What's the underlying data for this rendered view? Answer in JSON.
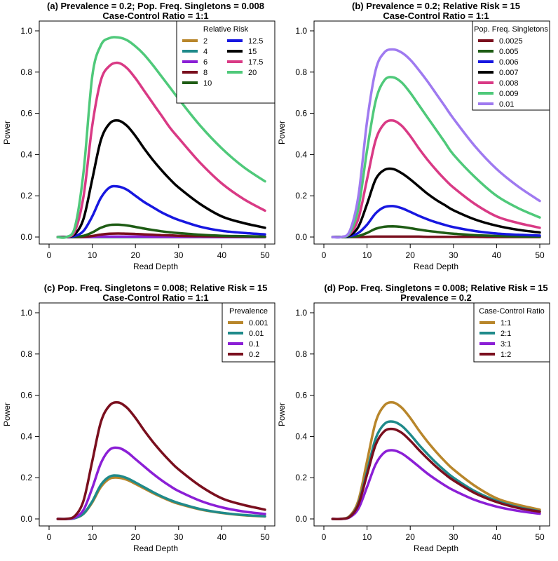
{
  "chart_data": [
    {
      "type": "line",
      "title": "(a) Prevalence = 0.2; Pop. Freq. Singletons = 0.008",
      "subtitle": "Case-Control Ratio = 1:1",
      "xlabel": "Read Depth",
      "ylabel": "Power",
      "xlim": [
        0,
        50
      ],
      "ylim": [
        0,
        1
      ],
      "xticks": [
        0,
        10,
        20,
        30,
        40,
        50
      ],
      "yticks": [
        0.0,
        0.2,
        0.4,
        0.6,
        0.8,
        1.0
      ],
      "legend_title": "Relative Risk",
      "legend_placement": "top-right",
      "legend_columns": 2,
      "x": [
        2,
        4,
        6,
        8,
        10,
        12,
        14,
        16,
        18,
        20,
        22,
        24,
        26,
        28,
        30,
        35,
        40,
        45,
        50
      ],
      "series": [
        {
          "name": "2",
          "color": "#B8862B",
          "values": [
            0,
            0,
            0,
            0,
            0,
            0,
            0,
            0,
            0,
            0,
            0,
            0,
            0,
            0,
            0,
            0,
            0,
            0,
            0
          ]
        },
        {
          "name": "4",
          "color": "#1F8A8A",
          "values": [
            0,
            0,
            0,
            0,
            0,
            0,
            0,
            0,
            0,
            0,
            0,
            0,
            0,
            0,
            0,
            0,
            0,
            0,
            0
          ]
        },
        {
          "name": "6",
          "color": "#8B1FD6",
          "values": [
            0,
            0,
            0,
            0,
            0.001,
            0.002,
            0.002,
            0.002,
            0.002,
            0.002,
            0.002,
            0.001,
            0.001,
            0.001,
            0.001,
            0.001,
            0,
            0,
            0
          ]
        },
        {
          "name": "8",
          "color": "#7A0F1E",
          "values": [
            0,
            0,
            0,
            0.001,
            0.005,
            0.012,
            0.016,
            0.017,
            0.016,
            0.015,
            0.013,
            0.011,
            0.009,
            0.008,
            0.006,
            0.004,
            0.003,
            0.002,
            0.001
          ]
        },
        {
          "name": "10",
          "color": "#1E5C14",
          "values": [
            0,
            0,
            0.001,
            0.006,
            0.022,
            0.045,
            0.058,
            0.06,
            0.056,
            0.049,
            0.041,
            0.034,
            0.028,
            0.023,
            0.019,
            0.011,
            0.006,
            0.004,
            0.002
          ]
        },
        {
          "name": "12.5",
          "color": "#1717E0",
          "values": [
            0,
            0,
            0.005,
            0.03,
            0.1,
            0.19,
            0.24,
            0.245,
            0.23,
            0.2,
            0.17,
            0.145,
            0.12,
            0.1,
            0.083,
            0.05,
            0.03,
            0.02,
            0.013
          ]
        },
        {
          "name": "15",
          "color": "#000000",
          "values": [
            0,
            0,
            0.015,
            0.09,
            0.28,
            0.47,
            0.55,
            0.565,
            0.54,
            0.49,
            0.43,
            0.375,
            0.325,
            0.28,
            0.24,
            0.16,
            0.1,
            0.068,
            0.045
          ]
        },
        {
          "name": "17.5",
          "color": "#D93A85",
          "values": [
            0,
            0,
            0.03,
            0.2,
            0.54,
            0.76,
            0.83,
            0.845,
            0.82,
            0.77,
            0.71,
            0.65,
            0.59,
            0.53,
            0.48,
            0.36,
            0.26,
            0.185,
            0.128
          ]
        },
        {
          "name": "20",
          "color": "#4FC97A",
          "values": [
            0,
            0,
            0.05,
            0.32,
            0.78,
            0.93,
            0.965,
            0.968,
            0.955,
            0.925,
            0.885,
            0.835,
            0.78,
            0.725,
            0.67,
            0.54,
            0.43,
            0.34,
            0.27
          ]
        }
      ]
    },
    {
      "type": "line",
      "title": "(b) Prevalence = 0.2; Relative Risk = 15",
      "subtitle": "Case-Control Ratio = 1:1",
      "xlabel": "Read Depth",
      "ylabel": "Power",
      "xlim": [
        0,
        50
      ],
      "ylim": [
        0,
        1
      ],
      "xticks": [
        0,
        10,
        20,
        30,
        40,
        50
      ],
      "yticks": [
        0.0,
        0.2,
        0.4,
        0.6,
        0.8,
        1.0
      ],
      "legend_title": "Pop. Freq. Singletons",
      "legend_placement": "top-right",
      "legend_columns": 1,
      "x": [
        2,
        4,
        6,
        8,
        10,
        12,
        14,
        16,
        18,
        20,
        22,
        24,
        26,
        28,
        30,
        35,
        40,
        45,
        50
      ],
      "series": [
        {
          "name": "0.0025",
          "color": "#7A0F1E",
          "values": [
            0,
            0,
            0,
            0,
            0.001,
            0.002,
            0.002,
            0.002,
            0.002,
            0.002,
            0.002,
            0.001,
            0.001,
            0.001,
            0.001,
            0.001,
            0,
            0,
            0
          ]
        },
        {
          "name": "0.005",
          "color": "#1E5C14",
          "values": [
            0,
            0,
            0.001,
            0.005,
            0.02,
            0.04,
            0.05,
            0.052,
            0.049,
            0.043,
            0.036,
            0.03,
            0.025,
            0.02,
            0.016,
            0.009,
            0.005,
            0.003,
            0.002
          ]
        },
        {
          "name": "0.006",
          "color": "#1717E0",
          "values": [
            0,
            0,
            0.004,
            0.02,
            0.06,
            0.115,
            0.145,
            0.15,
            0.14,
            0.122,
            0.103,
            0.086,
            0.071,
            0.059,
            0.048,
            0.029,
            0.017,
            0.011,
            0.007
          ]
        },
        {
          "name": "0.007",
          "color": "#000000",
          "values": [
            0,
            0,
            0.008,
            0.05,
            0.16,
            0.28,
            0.325,
            0.33,
            0.31,
            0.28,
            0.245,
            0.21,
            0.18,
            0.155,
            0.13,
            0.085,
            0.055,
            0.035,
            0.022
          ]
        },
        {
          "name": "0.008",
          "color": "#D93A85",
          "values": [
            0,
            0,
            0.015,
            0.09,
            0.28,
            0.47,
            0.55,
            0.565,
            0.54,
            0.49,
            0.43,
            0.375,
            0.325,
            0.28,
            0.24,
            0.16,
            0.1,
            0.068,
            0.045
          ]
        },
        {
          "name": "0.009",
          "color": "#4FC97A",
          "values": [
            0,
            0,
            0.02,
            0.14,
            0.42,
            0.66,
            0.76,
            0.775,
            0.75,
            0.7,
            0.64,
            0.58,
            0.52,
            0.46,
            0.4,
            0.29,
            0.2,
            0.14,
            0.095
          ]
        },
        {
          "name": "0.01",
          "color": "#9F7AF0",
          "values": [
            0,
            0,
            0.03,
            0.2,
            0.56,
            0.81,
            0.895,
            0.91,
            0.895,
            0.86,
            0.81,
            0.755,
            0.695,
            0.635,
            0.575,
            0.44,
            0.33,
            0.245,
            0.175
          ]
        }
      ]
    },
    {
      "type": "line",
      "title": "(c) Pop. Freq. Singletons = 0.008; Relative Risk = 15",
      "subtitle": "Case-Control Ratio = 1:1",
      "xlabel": "Read Depth",
      "ylabel": "Power",
      "xlim": [
        0,
        50
      ],
      "ylim": [
        0,
        1
      ],
      "xticks": [
        0,
        10,
        20,
        30,
        40,
        50
      ],
      "yticks": [
        0.0,
        0.2,
        0.4,
        0.6,
        0.8,
        1.0
      ],
      "legend_title": "Prevalence",
      "legend_placement": "top-right",
      "legend_columns": 1,
      "x": [
        2,
        4,
        6,
        8,
        10,
        12,
        14,
        16,
        18,
        20,
        22,
        24,
        26,
        28,
        30,
        35,
        40,
        45,
        50
      ],
      "series": [
        {
          "name": "0.001",
          "color": "#B8862B",
          "values": [
            0,
            0,
            0.004,
            0.025,
            0.08,
            0.155,
            0.195,
            0.2,
            0.19,
            0.17,
            0.148,
            0.126,
            0.106,
            0.088,
            0.073,
            0.046,
            0.029,
            0.018,
            0.012
          ]
        },
        {
          "name": "0.01",
          "color": "#1F8A8A",
          "values": [
            0,
            0,
            0.004,
            0.026,
            0.085,
            0.165,
            0.205,
            0.21,
            0.198,
            0.177,
            0.154,
            0.131,
            0.11,
            0.092,
            0.077,
            0.048,
            0.03,
            0.019,
            0.013
          ]
        },
        {
          "name": "0.1",
          "color": "#8B1FD6",
          "values": [
            0,
            0,
            0.007,
            0.045,
            0.15,
            0.27,
            0.335,
            0.345,
            0.325,
            0.29,
            0.255,
            0.22,
            0.188,
            0.16,
            0.135,
            0.088,
            0.056,
            0.036,
            0.024
          ]
        },
        {
          "name": "0.2",
          "color": "#7A0F1E",
          "values": [
            0,
            0,
            0.015,
            0.09,
            0.28,
            0.47,
            0.55,
            0.565,
            0.54,
            0.49,
            0.43,
            0.375,
            0.325,
            0.28,
            0.24,
            0.16,
            0.1,
            0.068,
            0.045
          ]
        }
      ]
    },
    {
      "type": "line",
      "title": "(d) Pop. Freq. Singletons = 0.008; Relative Risk = 15",
      "subtitle": "Prevalence = 0.2",
      "xlabel": "Read Depth",
      "ylabel": "Power",
      "xlim": [
        0,
        50
      ],
      "ylim": [
        0,
        1
      ],
      "xticks": [
        0,
        10,
        20,
        30,
        40,
        50
      ],
      "yticks": [
        0.0,
        0.2,
        0.4,
        0.6,
        0.8,
        1.0
      ],
      "legend_title": "Case-Control Ratio",
      "legend_placement": "top-right",
      "legend_columns": 1,
      "x": [
        2,
        4,
        6,
        8,
        10,
        12,
        14,
        16,
        18,
        20,
        22,
        24,
        26,
        28,
        30,
        35,
        40,
        45,
        50
      ],
      "series": [
        {
          "name": "1:1",
          "color": "#B8862B",
          "values": [
            0,
            0,
            0.015,
            0.09,
            0.28,
            0.47,
            0.55,
            0.565,
            0.54,
            0.49,
            0.43,
            0.375,
            0.325,
            0.28,
            0.24,
            0.16,
            0.1,
            0.068,
            0.045
          ]
        },
        {
          "name": "2:1",
          "color": "#1F8A8A",
          "values": [
            0,
            0,
            0.012,
            0.075,
            0.23,
            0.39,
            0.46,
            0.472,
            0.452,
            0.41,
            0.36,
            0.315,
            0.272,
            0.234,
            0.2,
            0.134,
            0.088,
            0.057,
            0.037
          ]
        },
        {
          "name": "3:1",
          "color": "#8B1FD6",
          "values": [
            0,
            0,
            0.008,
            0.05,
            0.155,
            0.265,
            0.322,
            0.333,
            0.318,
            0.288,
            0.254,
            0.22,
            0.19,
            0.163,
            0.139,
            0.092,
            0.06,
            0.039,
            0.025
          ]
        },
        {
          "name": "1:2",
          "color": "#7A0F1E",
          "values": [
            0,
            0,
            0.011,
            0.07,
            0.215,
            0.36,
            0.425,
            0.436,
            0.418,
            0.38,
            0.335,
            0.293,
            0.253,
            0.218,
            0.187,
            0.125,
            0.082,
            0.053,
            0.035
          ]
        }
      ]
    }
  ]
}
